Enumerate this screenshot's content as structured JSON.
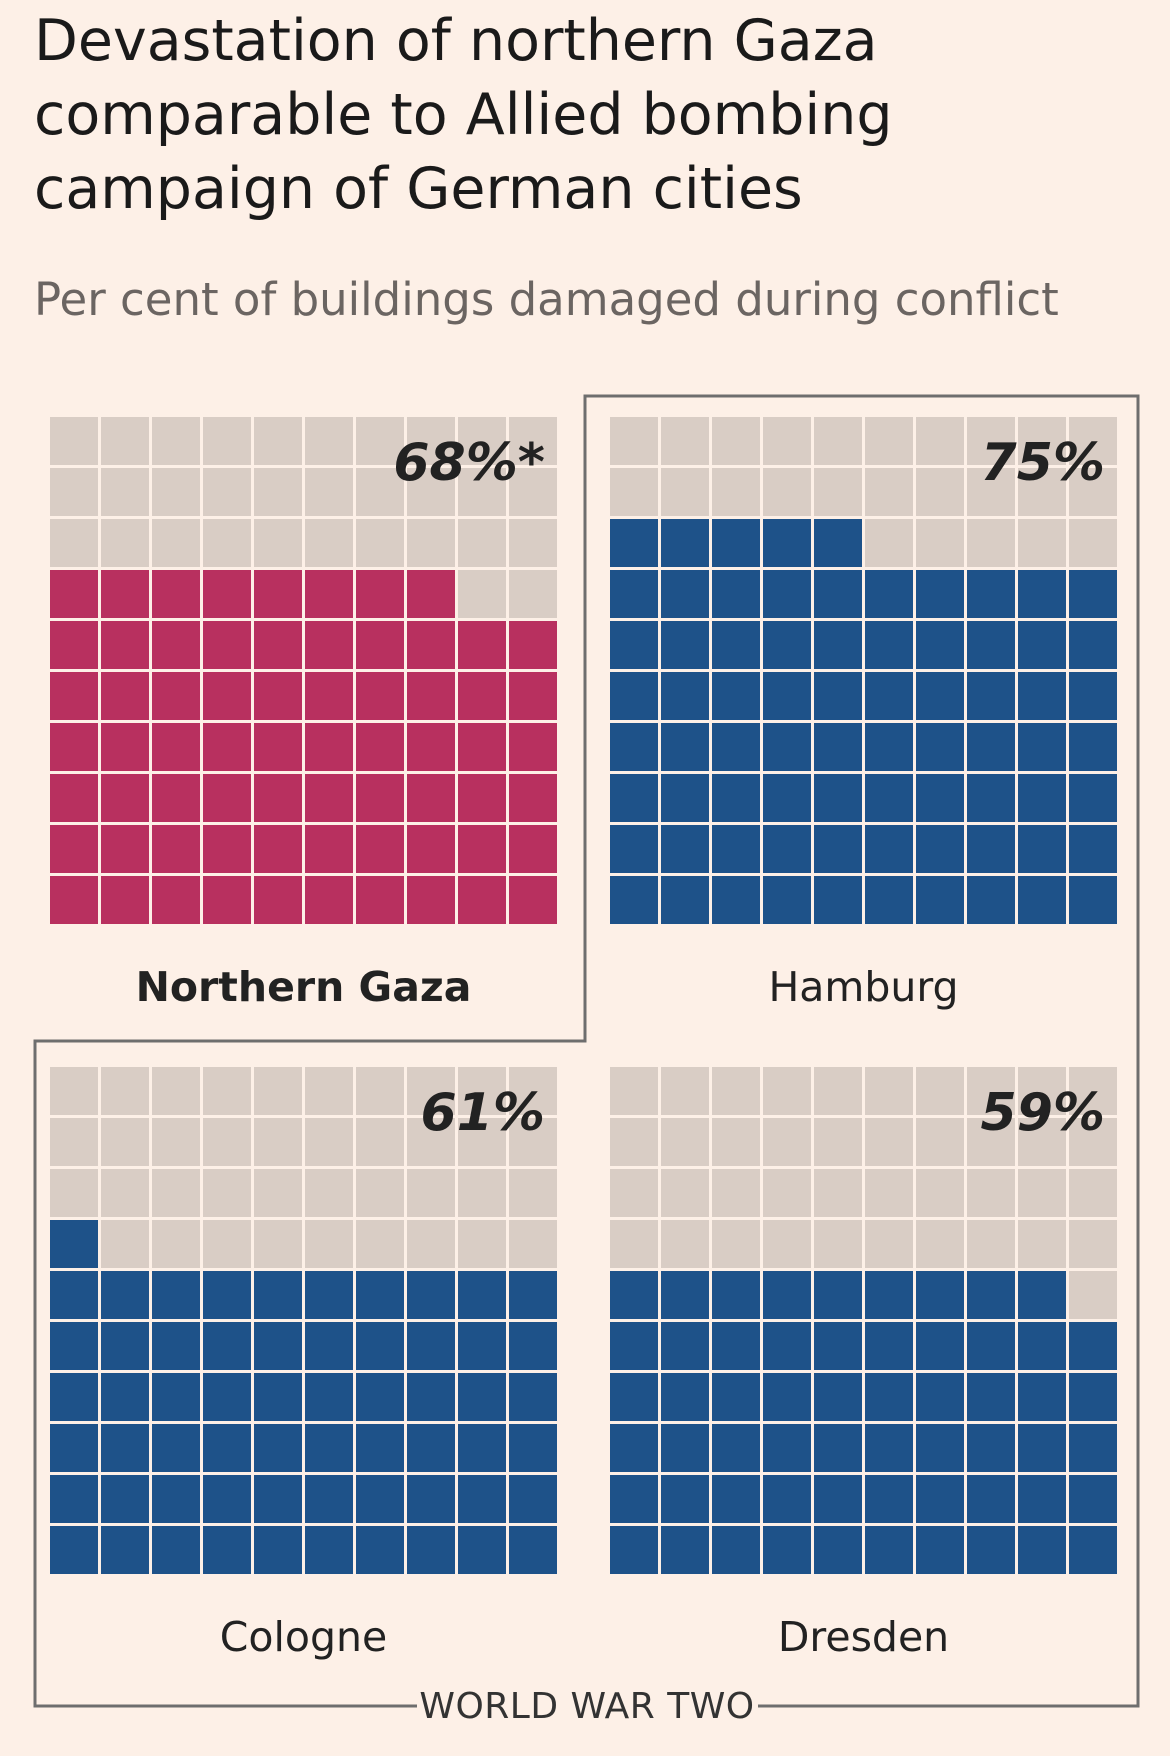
{
  "title": "Devastation of northern Gaza comparable to Allied bombing campaign of German cities",
  "subtitle": "Per cent of buildings damaged during conflict",
  "group_label": "WORLD WAR TWO",
  "colors": {
    "background": "#fdf0e7",
    "empty_cell": "#d9cdc5",
    "gaza": "#b8305f",
    "ww2": "#1e5289",
    "grid_line": "#fdf0e7",
    "bracket": "#6e6e6e"
  },
  "chart_data": {
    "type": "waffle",
    "grid": {
      "rows": 10,
      "cols": 10
    },
    "fill_order": "bottom-up, left-to-right within row",
    "panels": [
      {
        "name": "Northern Gaza",
        "value": 68,
        "label": "68%*",
        "group": "",
        "bold_label": true
      },
      {
        "name": "Hamburg",
        "value": 75,
        "label": "75%",
        "group": "WORLD WAR TWO",
        "bold_label": false
      },
      {
        "name": "Cologne",
        "value": 61,
        "label": "61%",
        "group": "WORLD WAR TWO",
        "bold_label": false
      },
      {
        "name": "Dresden",
        "value": 59,
        "label": "59%",
        "group": "WORLD WAR TWO",
        "bold_label": false
      }
    ]
  }
}
